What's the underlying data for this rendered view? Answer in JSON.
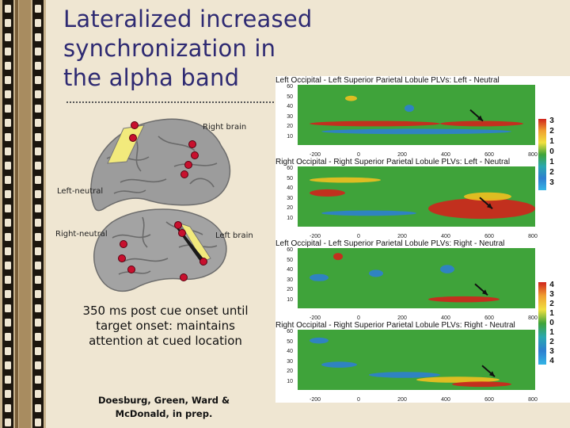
{
  "slide": {
    "title": "Lateralized increased\nsynchronization in\nthe alpha band",
    "labels": {
      "right_brain": "Right brain",
      "left_neutral": "Left-neutral",
      "right_neutral": "Right-neutral",
      "left_brain": "Left brain"
    },
    "caption": "350 ms post cue onset until target onset: maintains attention at cued location",
    "citation": "Doesburg, Green, Ward & McDonald, in prep."
  },
  "panels": [
    {
      "title": "Left Occipital - Left Superior Parietal Lobule PLVs: Left - Neutral"
    },
    {
      "title": "Right Occipital - Right Superior Parietal Lobule PLVs: Left - Neutral"
    },
    {
      "title": "Left Occipital - Left Superior Parietal Lobule PLVs: Right - Neutral"
    },
    {
      "title": "Right Occipital - Right Superior Parietal Lobule PLVs: Right - Neutral"
    }
  ],
  "axes": {
    "y_ticks": [
      "60",
      "50",
      "40",
      "30",
      "20",
      "10"
    ],
    "x_ticks": [
      "-200",
      "0",
      "200",
      "400",
      "600",
      "800"
    ]
  },
  "colorbars": [
    {
      "ticks": [
        "3",
        "2",
        "1",
        "0",
        "1",
        "2",
        "3"
      ]
    },
    {
      "ticks": [
        "4",
        "3",
        "2",
        "1",
        "0",
        "1",
        "2",
        "3",
        "4"
      ]
    }
  ],
  "colors": {
    "title": "#2e2a72",
    "plot_background": "#3fa33a",
    "synchrony_high": "#d0241c",
    "synchrony_mid": "#f0c020",
    "synchrony_low": "#2d7fd0",
    "electrode": "#c8102e"
  }
}
